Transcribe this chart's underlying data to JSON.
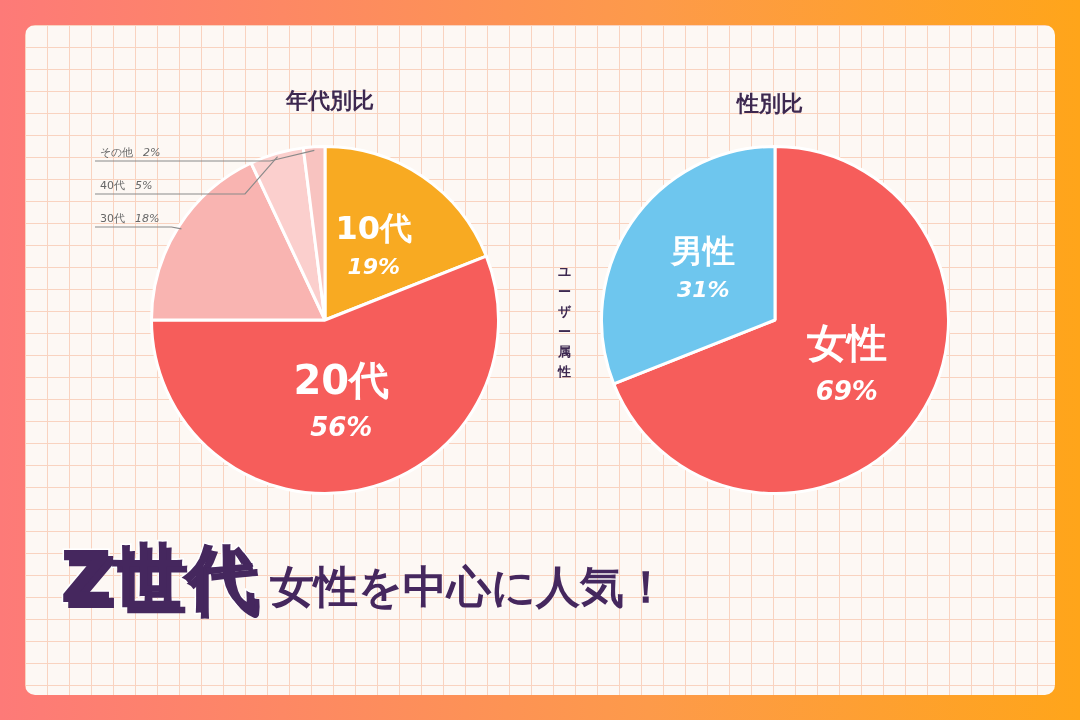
{
  "chart_data": [
    {
      "type": "pie",
      "title": "年代別比",
      "categories": [
        "10代",
        "20代",
        "30代",
        "40代",
        "その他"
      ],
      "values": [
        19,
        56,
        18,
        5,
        2
      ],
      "value_labels": [
        "19%",
        "56%",
        "18%",
        "5%",
        "2%"
      ],
      "colors": [
        "#f8aa22",
        "#f65d5b",
        "#f9b4b1",
        "#fbcfcd",
        "#f8c3c0"
      ],
      "legend": false
    },
    {
      "type": "pie",
      "title": "性別比",
      "categories": [
        "女性",
        "男性"
      ],
      "values": [
        69,
        31
      ],
      "value_labels": [
        "69%",
        "31%"
      ],
      "colors": [
        "#f65d5b",
        "#6ec6ee"
      ],
      "legend": false
    },
    {
      "type": "other",
      "annotations": [
        "ユーザー属性",
        "Z世代",
        "女性を中心に人気！"
      ]
    }
  ]
}
